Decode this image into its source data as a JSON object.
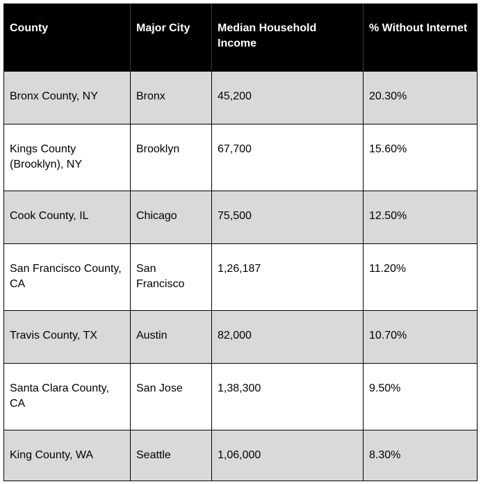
{
  "table": {
    "headers": [
      "County",
      "Major City",
      "Median Household Income",
      "% Without Internet"
    ],
    "rows": [
      [
        "Bronx County, NY",
        "Bronx",
        "45,200",
        "20.30%"
      ],
      [
        "Kings County (Brooklyn), NY",
        "Brooklyn",
        "67,700",
        "15.60%"
      ],
      [
        "Cook County, IL",
        "Chicago",
        "75,500",
        "12.50%"
      ],
      [
        "San Francisco County, CA",
        "San Francisco",
        "1,26,187",
        "11.20%"
      ],
      [
        "Travis County, TX",
        "Austin",
        "82,000",
        "10.70%"
      ],
      [
        "Santa Clara County, CA",
        "San Jose",
        "1,38,300",
        "9.50%"
      ],
      [
        "King County, WA",
        "Seattle",
        "1,06,000",
        "8.30%"
      ]
    ]
  },
  "colors": {
    "header_bg": "#000000",
    "header_text": "#ffffff",
    "shaded_row": "#d9d9d9",
    "plain_row": "#ffffff"
  }
}
